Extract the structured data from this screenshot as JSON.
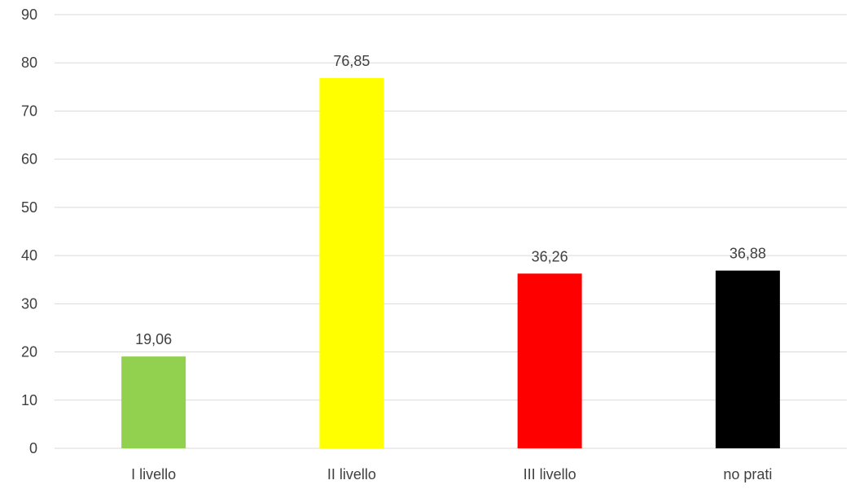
{
  "chart_data": {
    "type": "bar",
    "title": "",
    "xlabel": "",
    "ylabel": "",
    "categories": [
      "I livello",
      "II livello",
      "III livello",
      "no prati"
    ],
    "values": [
      19.06,
      76.85,
      36.26,
      36.88
    ],
    "value_labels": [
      "19,06",
      "76,85",
      "36,26",
      "36,88"
    ],
    "colors": [
      "#92d050",
      "#ffff00",
      "#ff0000",
      "#000000"
    ],
    "ylim": [
      0,
      90
    ],
    "yticks": [
      "0",
      "10",
      "20",
      "30",
      "40",
      "50",
      "60",
      "70",
      "80",
      "90"
    ],
    "grid": true,
    "legend": "none"
  }
}
